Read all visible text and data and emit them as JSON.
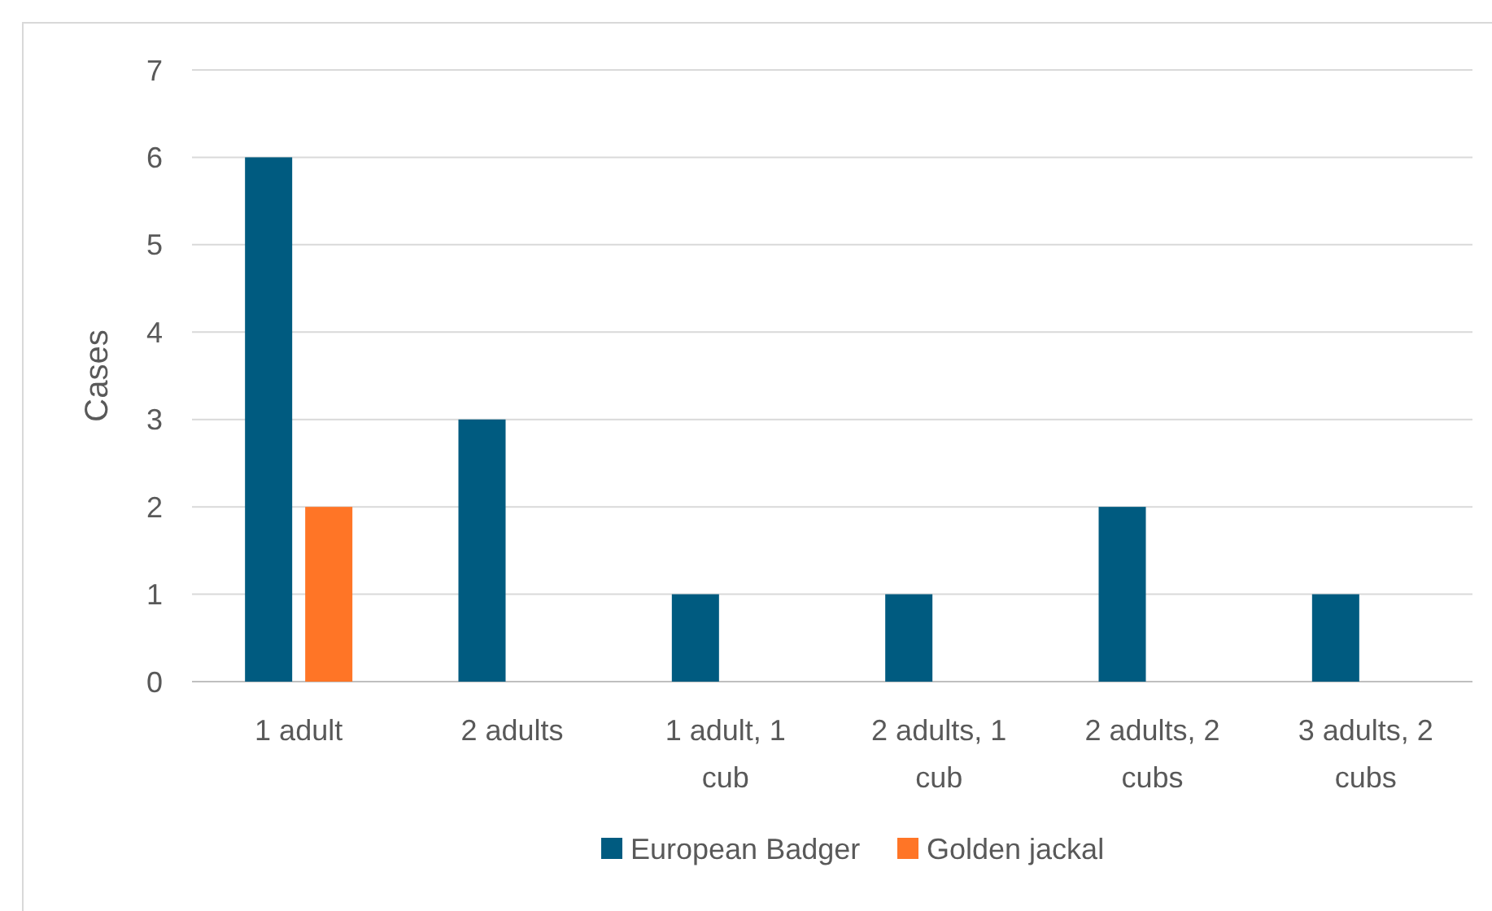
{
  "chart_data": {
    "type": "bar",
    "ylabel": "Cases",
    "categories": [
      "1 adult",
      "2 adults",
      "1 adult, 1 cub",
      "2 adults, 1 cub",
      "2 adults, 2 cubs",
      "3 adults, 2 cubs"
    ],
    "series": [
      {
        "name": "European Badger",
        "color": "#005b80",
        "values": [
          6,
          3,
          1,
          1,
          2,
          1
        ]
      },
      {
        "name": "Golden jackal",
        "color": "#ff7526",
        "values": [
          2,
          null,
          null,
          null,
          null,
          null
        ]
      }
    ],
    "ylim": [
      0,
      7
    ],
    "yticks": [
      0,
      1,
      2,
      3,
      4,
      5,
      6,
      7
    ],
    "grid": "y",
    "legend": "bottom"
  }
}
